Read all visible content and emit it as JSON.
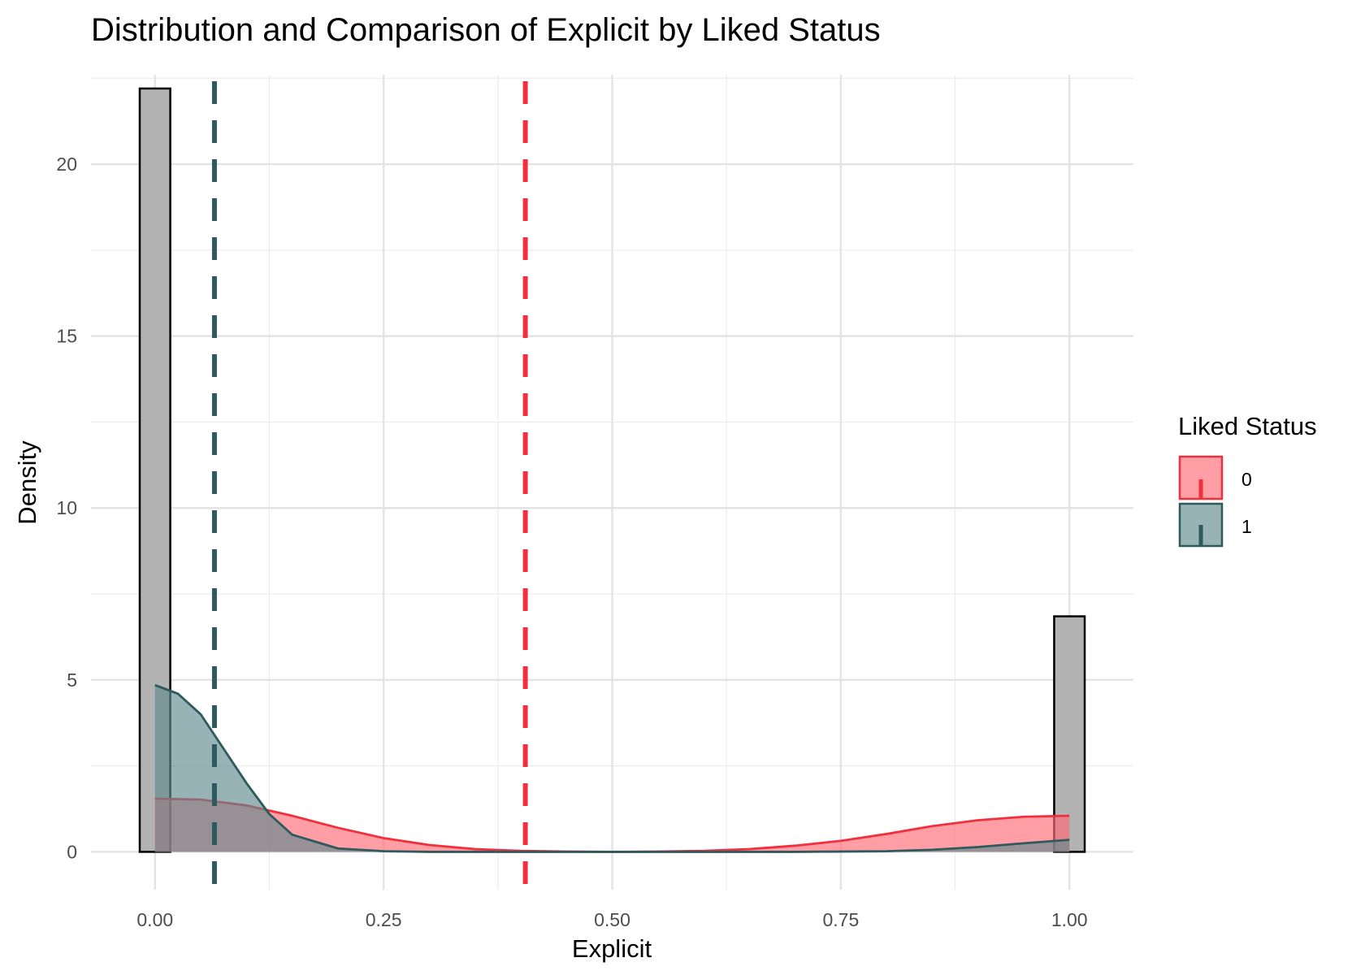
{
  "chart_data": {
    "type": "histogram+density",
    "title": "Distribution and Comparison of Explicit by Liked Status",
    "xlabel": "Explicit",
    "ylabel": "Density",
    "xlim": [
      -0.07,
      1.07
    ],
    "ylim": [
      -1.1,
      22.6
    ],
    "x_ticks": [
      0.0,
      0.25,
      0.5,
      0.75,
      1.0
    ],
    "x_tick_labels": [
      "0.00",
      "0.25",
      "0.50",
      "0.75",
      "1.00"
    ],
    "y_ticks": [
      0,
      5,
      10,
      15,
      20
    ],
    "y_tick_labels": [
      "0",
      "5",
      "10",
      "15",
      "20"
    ],
    "grid": true,
    "histogram": {
      "fill": "#b3b3b3",
      "stroke": "#000000",
      "bins": [
        {
          "x0": -0.0167,
          "x1": 0.0167,
          "density": 22.2
        },
        {
          "x0": 0.9833,
          "x1": 1.0167,
          "density": 6.85
        }
      ]
    },
    "legend": {
      "title": "Liked Status",
      "position": "right",
      "entries": [
        "0",
        "1"
      ]
    },
    "series": [
      {
        "name": "0",
        "color": "#f2303d",
        "fill": "#ff6b75",
        "mean": 0.405,
        "x": [
          0.0,
          0.05,
          0.1,
          0.15,
          0.2,
          0.25,
          0.3,
          0.35,
          0.4,
          0.45,
          0.5,
          0.55,
          0.6,
          0.65,
          0.7,
          0.75,
          0.8,
          0.85,
          0.9,
          0.95,
          1.0
        ],
        "values": [
          1.55,
          1.52,
          1.35,
          1.05,
          0.7,
          0.4,
          0.2,
          0.08,
          0.03,
          0.01,
          0.0,
          0.01,
          0.03,
          0.08,
          0.18,
          0.32,
          0.52,
          0.75,
          0.92,
          1.02,
          1.05
        ]
      },
      {
        "name": "1",
        "color": "#2e5a5e",
        "fill": "#5f8a8e",
        "mean": 0.065,
        "x": [
          0.0,
          0.025,
          0.05,
          0.075,
          0.1,
          0.125,
          0.15,
          0.2,
          0.25,
          0.3,
          0.4,
          0.5,
          0.6,
          0.7,
          0.8,
          0.85,
          0.9,
          0.95,
          1.0
        ],
        "values": [
          4.85,
          4.6,
          4.0,
          3.0,
          2.0,
          1.1,
          0.5,
          0.1,
          0.02,
          0.0,
          0.0,
          0.0,
          0.0,
          0.0,
          0.02,
          0.06,
          0.14,
          0.25,
          0.35
        ]
      }
    ]
  }
}
